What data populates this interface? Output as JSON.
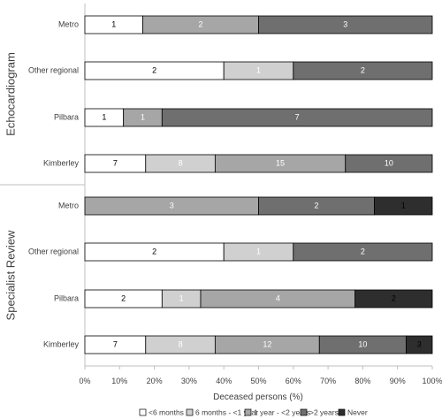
{
  "chart_data": {
    "type": "bar",
    "orientation": "horizontal",
    "stacking": "percent",
    "xlabel": "Deceased persons (%)",
    "xlim": [
      0,
      100
    ],
    "x_ticks": [
      "0%",
      "10%",
      "20%",
      "30%",
      "40%",
      "50%",
      "60%",
      "70%",
      "80%",
      "90%",
      "100%"
    ],
    "grid": false,
    "legend_position": "bottom",
    "legend": [
      {
        "name": "<6 months",
        "color": "#ffffff",
        "label_color": "#000000"
      },
      {
        "name": "6 months - <1 year",
        "color": "#d0d0d0",
        "label_color": "#ffffff"
      },
      {
        "name": "1 year - <2 years",
        "color": "#a6a6a6",
        "label_color": "#ffffff"
      },
      {
        "name": ">2 years",
        "color": "#6f6f6f",
        "label_color": "#ffffff"
      },
      {
        "name": "Never",
        "color": "#2e2e2e",
        "label_color": "#000000"
      }
    ],
    "groups": [
      {
        "name": "Echocardiogram",
        "categories": [
          {
            "name": "Metro",
            "values": [
              1,
              0,
              2,
              3,
              0
            ]
          },
          {
            "name": "Other regional",
            "values": [
              2,
              1,
              0,
              2,
              0
            ]
          },
          {
            "name": "Pilbara",
            "values": [
              1,
              0,
              1,
              7,
              0
            ]
          },
          {
            "name": "Kimberley",
            "values": [
              7,
              8,
              15,
              10,
              0
            ]
          }
        ]
      },
      {
        "name": "Specialist Review",
        "categories": [
          {
            "name": "Metro",
            "values": [
              0,
              0,
              3,
              2,
              1
            ]
          },
          {
            "name": "Other regional",
            "values": [
              2,
              1,
              0,
              2,
              0
            ]
          },
          {
            "name": "Pilbara",
            "values": [
              2,
              1,
              4,
              0,
              2
            ]
          },
          {
            "name": "Kimberley",
            "values": [
              7,
              8,
              12,
              10,
              3
            ]
          }
        ]
      }
    ]
  }
}
